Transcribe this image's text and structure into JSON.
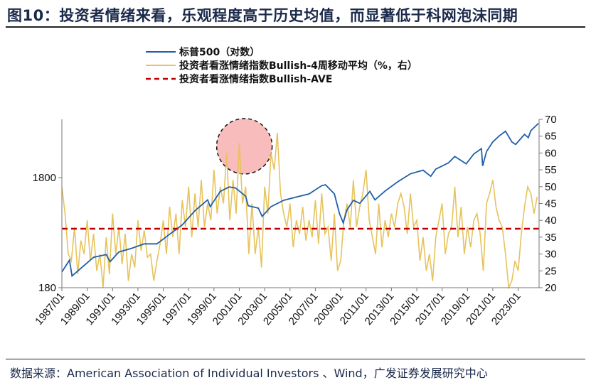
{
  "title": "图10：投资者情绪来看，乐观程度高于历史均值，而显著低于科网泡沫同期",
  "source": "数据来源：American Association of Individual Investors 、Wind，广发证券发展研究中心",
  "colors": {
    "sp500": "#1f5fa8",
    "bullish": "#e6c35c",
    "average": "#c00000",
    "highlight": "#f9bcbc"
  },
  "chart_data": {
    "type": "line",
    "legend": [
      "标普500（对数）",
      "投资者看涨情绪指数Bullish-4周移动平均（%，右）",
      "投资者看涨情绪指数Bullish-AVE"
    ],
    "legend_placement": "top-center",
    "left_axis": {
      "scale": "log",
      "range": [
        180,
        6090
      ],
      "tick_labels": [
        "180",
        "1800"
      ],
      "ticks": [
        180,
        1800
      ]
    },
    "right_axis": {
      "range": [
        20,
        70
      ],
      "tick_labels": [
        "20",
        "25",
        "30",
        "35",
        "40",
        "45",
        "50",
        "55",
        "60",
        "65",
        "70"
      ],
      "ticks": [
        20,
        25,
        30,
        35,
        40,
        45,
        50,
        55,
        60,
        65,
        70
      ]
    },
    "x_axis": {
      "range": [
        1987.0,
        2024.65
      ],
      "tick_labels": [
        "1987/01",
        "1989/01",
        "1991/01",
        "1993/01",
        "1995/01",
        "1997/01",
        "1999/01",
        "2001/01",
        "2003/01",
        "2005/01",
        "2007/01",
        "2009/01",
        "2011/01",
        "2013/01",
        "2015/01",
        "2017/01",
        "2019/01",
        "2021/01",
        "2023/01"
      ]
    },
    "sp500": {
      "x": [
        1987.0,
        1987.6,
        1987.8,
        1988.5,
        1989.5,
        1990.5,
        1990.8,
        1991.5,
        1992.5,
        1993.5,
        1994.5,
        1995.5,
        1996.5,
        1997.5,
        1998.5,
        1998.7,
        1999.5,
        2000.2,
        2000.7,
        2001.5,
        2001.7,
        2002.5,
        2002.8,
        2003.5,
        2004.5,
        2005.5,
        2006.5,
        2007.5,
        2007.8,
        2008.5,
        2008.9,
        2009.2,
        2009.5,
        2010.0,
        2010.5,
        2011.3,
        2011.7,
        2012.5,
        2013.5,
        2014.5,
        2015.5,
        2016.1,
        2016.5,
        2017.5,
        2018.0,
        2018.9,
        2019.5,
        2020.1,
        2020.2,
        2020.5,
        2021.0,
        2021.5,
        2022.0,
        2022.5,
        2022.8,
        2023.5,
        2023.8,
        2024.0,
        2024.6
      ],
      "y": [
        250,
        320,
        230,
        270,
        340,
        360,
        310,
        380,
        410,
        450,
        450,
        550,
        670,
        900,
        1130,
        980,
        1350,
        1480,
        1450,
        1220,
        1000,
        950,
        800,
        980,
        1120,
        1200,
        1280,
        1520,
        1550,
        1280,
        850,
        700,
        920,
        1120,
        1050,
        1350,
        1130,
        1360,
        1650,
        1950,
        2100,
        1850,
        2150,
        2450,
        2800,
        2400,
        2950,
        3300,
        2300,
        3100,
        3800,
        4300,
        4750,
        3800,
        3600,
        4450,
        4150,
        4800,
        5600
      ]
    },
    "bullish": {
      "x_start": 1987.0,
      "x_step": 0.25,
      "y": [
        50,
        42,
        30,
        28,
        38,
        24,
        34,
        30,
        40,
        28,
        36,
        25,
        30,
        20,
        35,
        24,
        42,
        30,
        38,
        27,
        36,
        22,
        30,
        26,
        40,
        31,
        37,
        29,
        30,
        22,
        28,
        33,
        40,
        30,
        44,
        35,
        42,
        30,
        46,
        38,
        50,
        35,
        48,
        38,
        52,
        38,
        45,
        40,
        55,
        42,
        50,
        45,
        60,
        40,
        52,
        42,
        63,
        45,
        50,
        30,
        45,
        30,
        38,
        26,
        50,
        42,
        60,
        55,
        66,
        48,
        42,
        38,
        45,
        32,
        40,
        36,
        44,
        34,
        40,
        35,
        46,
        33,
        48,
        36,
        38,
        28,
        42,
        25,
        28,
        40,
        45,
        38,
        52,
        38,
        44,
        48,
        55,
        40,
        35,
        30,
        45,
        32,
        40,
        35,
        42,
        38,
        45,
        48,
        44,
        36,
        48,
        38,
        40,
        28,
        35,
        25,
        30,
        22,
        35,
        40,
        45,
        30,
        36,
        38,
        50,
        35,
        44,
        30,
        38,
        32,
        40,
        42,
        36,
        25,
        45,
        48,
        52,
        44,
        40,
        38,
        30,
        20,
        22,
        28,
        25,
        36,
        44,
        50,
        48,
        42,
        47
      ]
    },
    "bullish_average": 37.5,
    "annotation": {
      "type": "circle",
      "x": 2001.4,
      "y_right": 62
    }
  }
}
